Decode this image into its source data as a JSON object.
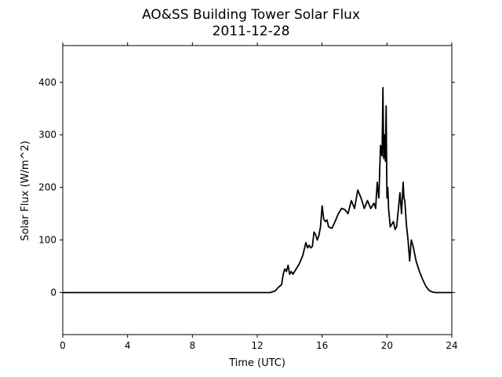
{
  "chart_data": {
    "type": "line",
    "title": "AO&SS Building Tower Solar Flux",
    "subtitle": "2011-12-28",
    "xlabel": "Time (UTC)",
    "ylabel": "Solar Flux (W/m^2)",
    "xlim": [
      0,
      24
    ],
    "ylim": [
      -80,
      470
    ],
    "xticks": [
      0,
      4,
      8,
      12,
      16,
      20,
      24
    ],
    "yticks": [
      0,
      100,
      200,
      300,
      400
    ],
    "grid": false,
    "line_color": "#000000",
    "series": [
      {
        "x": [
          0,
          4,
          8,
          12,
          12.8,
          13.1,
          13.3,
          13.5,
          13.6,
          13.7,
          13.8,
          13.9,
          14.0,
          14.1,
          14.2,
          14.4,
          14.6,
          14.8,
          15.0,
          15.1,
          15.2,
          15.3,
          15.4,
          15.5,
          15.6,
          15.7,
          15.8,
          15.9,
          16.0,
          16.1,
          16.2,
          16.3,
          16.4,
          16.6,
          16.8,
          17.0,
          17.2,
          17.4,
          17.6,
          17.8,
          18.0,
          18.2,
          18.4,
          18.6,
          18.8,
          19.0,
          19.2,
          19.3,
          19.4,
          19.5,
          19.6,
          19.7,
          19.75,
          19.8,
          19.85,
          19.9,
          19.95,
          20.0,
          20.05,
          20.1,
          20.2,
          20.3,
          20.4,
          20.5,
          20.6,
          20.8,
          20.9,
          21.0,
          21.05,
          21.1,
          21.2,
          21.3,
          21.4,
          21.5,
          21.6,
          21.8,
          22.0,
          22.2,
          22.4,
          22.6,
          22.8,
          23.0,
          24.0
        ],
        "y": [
          0,
          0,
          0,
          0,
          0,
          3,
          10,
          15,
          35,
          45,
          40,
          52,
          35,
          40,
          35,
          45,
          55,
          70,
          95,
          85,
          90,
          85,
          88,
          115,
          110,
          100,
          108,
          125,
          165,
          140,
          135,
          138,
          125,
          122,
          135,
          150,
          160,
          158,
          150,
          175,
          160,
          195,
          180,
          160,
          175,
          160,
          170,
          160,
          210,
          180,
          280,
          260,
          390,
          255,
          300,
          250,
          355,
          180,
          200,
          160,
          125,
          130,
          135,
          120,
          125,
          190,
          150,
          210,
          180,
          175,
          130,
          100,
          60,
          100,
          90,
          60,
          40,
          25,
          12,
          4,
          1,
          0,
          0
        ]
      }
    ]
  }
}
